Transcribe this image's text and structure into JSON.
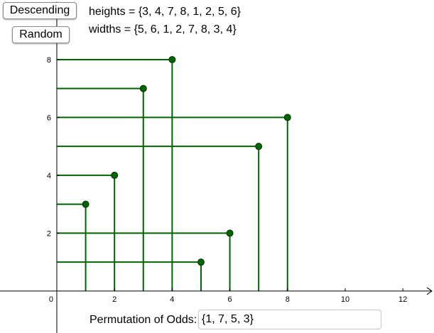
{
  "buttons": {
    "descending": "Descending",
    "random": "Random"
  },
  "info": {
    "heights_text": "heights = {3, 4, 7, 8, 1, 2, 5, 6}",
    "widths_text": "widths = {5, 6, 1, 2, 7, 8, 3, 4}"
  },
  "permutation": {
    "label": "Permutation of Odds:",
    "value": "{1, 7, 5, 3}"
  },
  "chart_data": {
    "type": "scatter",
    "title": "",
    "xlabel": "",
    "ylabel": "",
    "xlim": [
      -1.97,
      13.08
    ],
    "ylim": [
      -1.45,
      10.06
    ],
    "x_ticks": [
      0,
      2,
      4,
      6,
      8,
      10,
      12
    ],
    "y_ticks": [
      2,
      4,
      6,
      8
    ],
    "x_tick_labels": [
      "0",
      "2",
      "4",
      "6",
      "8",
      "10",
      "12"
    ],
    "y_tick_labels": [
      "2",
      "4",
      "6",
      "8"
    ],
    "grid": false,
    "points": [
      {
        "x": 5,
        "y": 1
      },
      {
        "x": 6,
        "y": 2
      },
      {
        "x": 1,
        "y": 3
      },
      {
        "x": 2,
        "y": 4
      },
      {
        "x": 7,
        "y": 5
      },
      {
        "x": 8,
        "y": 6
      },
      {
        "x": 3,
        "y": 7
      },
      {
        "x": 4,
        "y": 8
      }
    ],
    "colors": {
      "points": "#006400",
      "point_stroke": "#003300",
      "lines": "#006400",
      "axes": "#000000"
    }
  }
}
